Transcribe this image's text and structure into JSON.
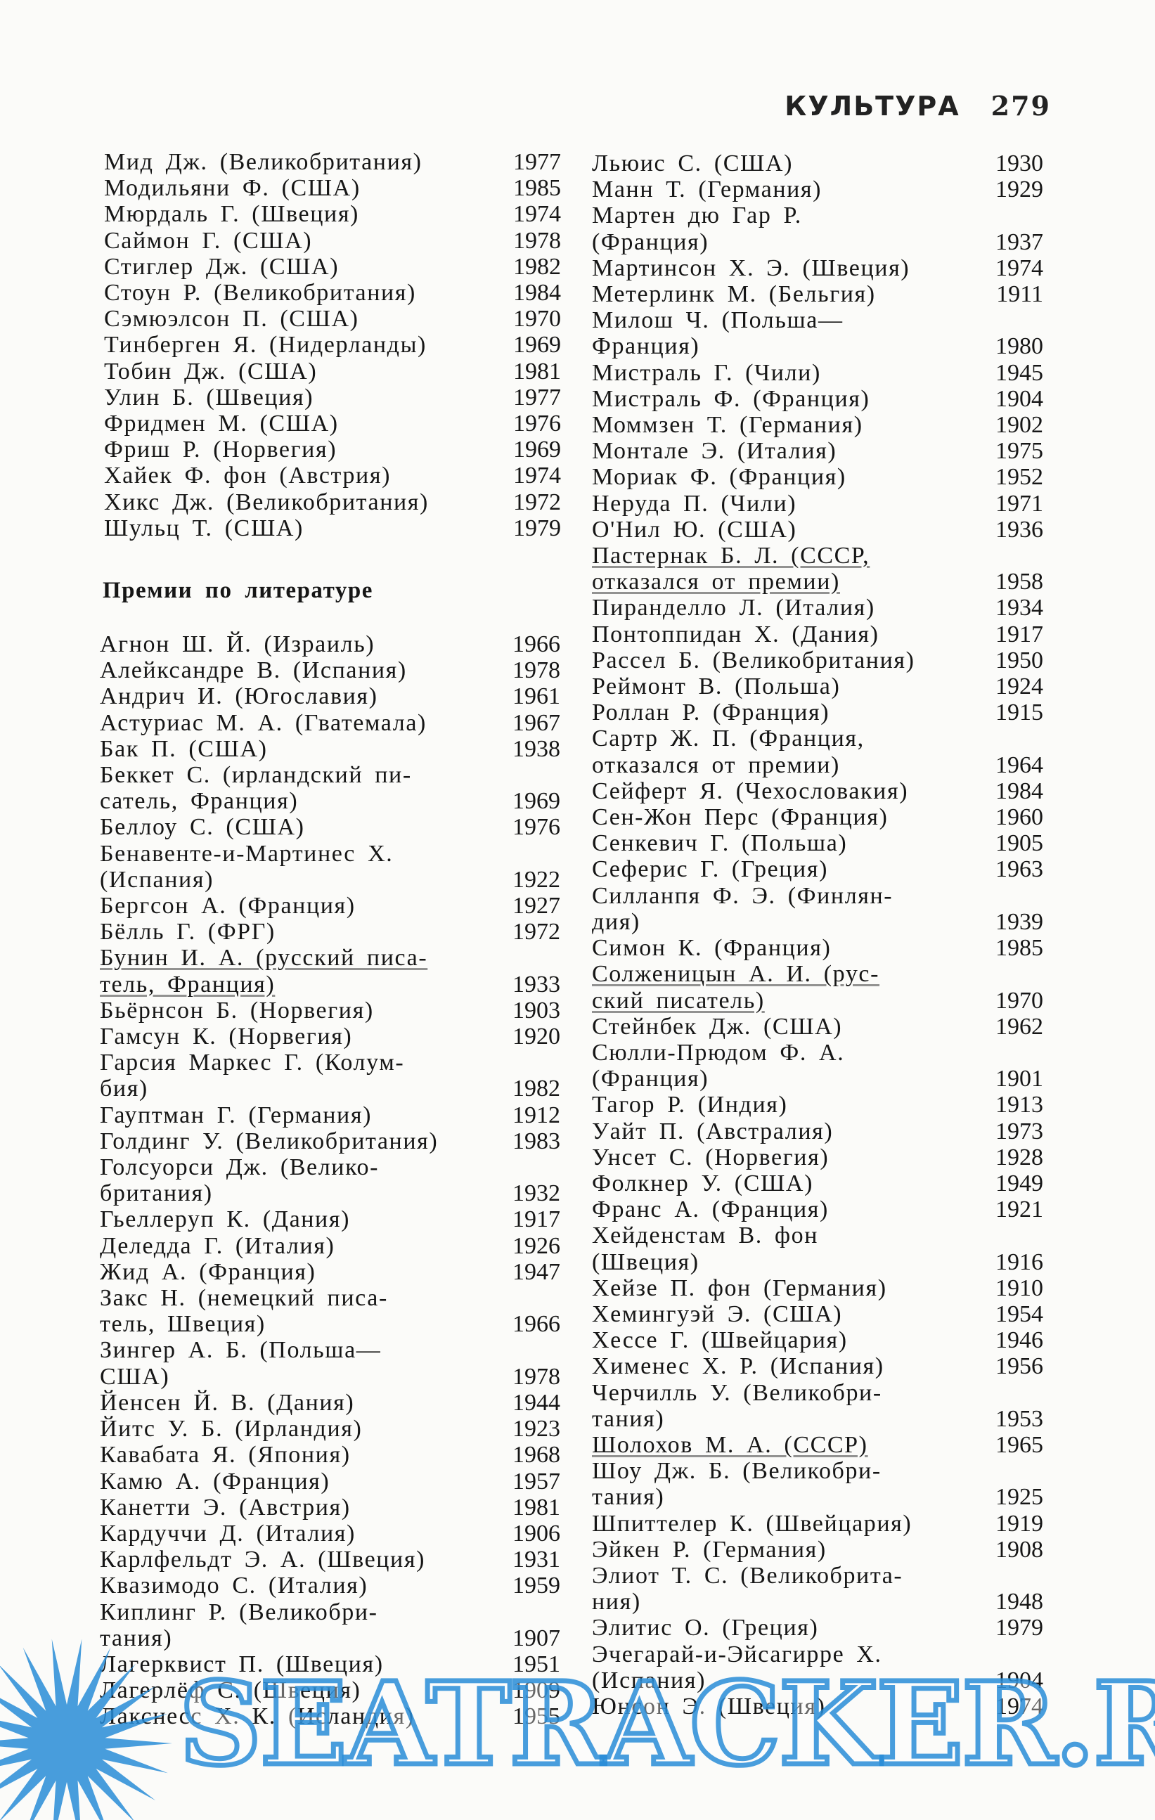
{
  "header": {
    "section": "КУЛЬТУРА",
    "page_number": "279"
  },
  "economics": [
    {
      "lines": [
        "Мид Дж. (Великобритания)"
      ],
      "year": "1977"
    },
    {
      "lines": [
        "Модильяни Ф. (США)"
      ],
      "year": "1985"
    },
    {
      "lines": [
        "Мюрдаль Г. (Швеция)"
      ],
      "year": "1974"
    },
    {
      "lines": [
        "Саймон Г. (США)"
      ],
      "year": "1978"
    },
    {
      "lines": [
        "Стиглер Дж. (США)"
      ],
      "year": "1982"
    },
    {
      "lines": [
        "Стоун Р. (Великобритания)"
      ],
      "year": "1984"
    },
    {
      "lines": [
        "Сэмюэлсон П. (США)"
      ],
      "year": "1970"
    },
    {
      "lines": [
        "Тинберген Я. (Нидерланды)"
      ],
      "year": "1969"
    },
    {
      "lines": [
        "Тобин Дж. (США)"
      ],
      "year": "1981"
    },
    {
      "lines": [
        "Улин Б. (Швеция)"
      ],
      "year": "1977"
    },
    {
      "lines": [
        "Фридмен М. (США)"
      ],
      "year": "1976"
    },
    {
      "lines": [
        "Фриш Р. (Норвегия)"
      ],
      "year": "1969"
    },
    {
      "lines": [
        "Хайек Ф. фон (Австрия)"
      ],
      "year": "1974"
    },
    {
      "lines": [
        "Хикс Дж. (Великобритания)"
      ],
      "year": "1972"
    },
    {
      "lines": [
        "Шульц Т. (США)"
      ],
      "year": "1979"
    }
  ],
  "literature_heading": "Премии по литературе",
  "literature_left": [
    {
      "lines": [
        "Агнон Ш. Й. (Израиль)"
      ],
      "year": "1966"
    },
    {
      "lines": [
        "Алейксандре В. (Испания)"
      ],
      "year": "1978"
    },
    {
      "lines": [
        "Андрич И. (Югославия)"
      ],
      "year": "1961"
    },
    {
      "lines": [
        "Астуриас М. А. (Гватемала)"
      ],
      "year": "1967"
    },
    {
      "lines": [
        "Бак П. (США)"
      ],
      "year": "1938"
    },
    {
      "lines": [
        "Беккет С. (ирландский пи-",
        "сатель, Франция)"
      ],
      "year": "1969"
    },
    {
      "lines": [
        "Беллоу С. (США)"
      ],
      "year": "1976"
    },
    {
      "lines": [
        "Бенавенте-и-Мартинес Х.",
        "(Испания)"
      ],
      "year": "1922"
    },
    {
      "lines": [
        "Бергсон А. (Франция)"
      ],
      "year": "1927"
    },
    {
      "lines": [
        "Бёлль Г. (ФРГ)"
      ],
      "year": "1972"
    },
    {
      "lines": [
        "Бунин И. А. (русский писа-",
        "тель, Франция)"
      ],
      "year": "1933",
      "marked": true
    },
    {
      "lines": [
        "Бьёрнсон Б. (Норвегия)"
      ],
      "year": "1903"
    },
    {
      "lines": [
        "Гамсун К. (Норвегия)"
      ],
      "year": "1920"
    },
    {
      "lines": [
        "Гарсия Маркес Г. (Колум-",
        "бия)"
      ],
      "year": "1982"
    },
    {
      "lines": [
        "Гауптман Г. (Германия)"
      ],
      "year": "1912"
    },
    {
      "lines": [
        "Голдинг У. (Великобритания)"
      ],
      "year": "1983"
    },
    {
      "lines": [
        "Голсуорси Дж. (Велико-",
        "британия)"
      ],
      "year": "1932"
    },
    {
      "lines": [
        "Гьеллеруп К. (Дания)"
      ],
      "year": "1917"
    },
    {
      "lines": [
        "Деледда Г. (Италия)"
      ],
      "year": "1926"
    },
    {
      "lines": [
        "Жид А. (Франция)"
      ],
      "year": "1947"
    },
    {
      "lines": [
        "Закс Н. (немецкий писа-",
        "тель, Швеция)"
      ],
      "year": "1966"
    },
    {
      "lines": [
        "Зингер А. Б. (Польша—",
        "США)"
      ],
      "year": "1978"
    },
    {
      "lines": [
        "Йенсен Й. В. (Дания)"
      ],
      "year": "1944"
    },
    {
      "lines": [
        "Йитс У. Б. (Ирландия)"
      ],
      "year": "1923"
    },
    {
      "lines": [
        "Кавабата Я. (Япония)"
      ],
      "year": "1968"
    },
    {
      "lines": [
        "Камю А. (Франция)"
      ],
      "year": "1957"
    },
    {
      "lines": [
        "Канетти Э. (Австрия)"
      ],
      "year": "1981"
    },
    {
      "lines": [
        "Кардуччи Д. (Италия)"
      ],
      "year": "1906"
    },
    {
      "lines": [
        "Карлфельдт Э. А. (Швеция)"
      ],
      "year": "1931"
    },
    {
      "lines": [
        "Квазимодо С. (Италия)"
      ],
      "year": "1959"
    },
    {
      "lines": [
        "Киплинг Р. (Великобри-",
        "тания)"
      ],
      "year": "1907"
    },
    {
      "lines": [
        "Лагерквист П. (Швеция)"
      ],
      "year": "1951"
    },
    {
      "lines": [
        "Лагерлёф С. (Швеция)"
      ],
      "year": "1909"
    },
    {
      "lines": [
        "Лакснесс Х. К. (Исландия)"
      ],
      "year": "1955"
    }
  ],
  "literature_right": [
    {
      "lines": [
        "Льюис С. (США)"
      ],
      "year": "1930"
    },
    {
      "lines": [
        "Манн Т. (Германия)"
      ],
      "year": "1929"
    },
    {
      "lines": [
        "Мартен дю Гар Р.",
        "(Франция)"
      ],
      "year": "1937"
    },
    {
      "lines": [
        "Мартинсон Х. Э. (Швеция)"
      ],
      "year": "1974"
    },
    {
      "lines": [
        "Метерлинк М. (Бельгия)"
      ],
      "year": "1911"
    },
    {
      "lines": [
        "Милош Ч. (Польша—",
        "Франция)"
      ],
      "year": "1980"
    },
    {
      "lines": [
        "Мистраль Г. (Чили)"
      ],
      "year": "1945"
    },
    {
      "lines": [
        "Мистраль Ф. (Франция)"
      ],
      "year": "1904"
    },
    {
      "lines": [
        "Моммзен Т. (Германия)"
      ],
      "year": "1902"
    },
    {
      "lines": [
        "Монтале Э. (Италия)"
      ],
      "year": "1975"
    },
    {
      "lines": [
        "Мориак Ф. (Франция)"
      ],
      "year": "1952"
    },
    {
      "lines": [
        "Неруда П. (Чили)"
      ],
      "year": "1971"
    },
    {
      "lines": [
        "О'Нил Ю. (США)"
      ],
      "year": "1936"
    },
    {
      "lines": [
        "Пастернак Б. Л. (СССР,",
        "отказался от премии)"
      ],
      "year": "1958",
      "marked": true
    },
    {
      "lines": [
        "Пиранделло Л. (Италия)"
      ],
      "year": "1934"
    },
    {
      "lines": [
        "Понтоппидан Х. (Дания)"
      ],
      "year": "1917"
    },
    {
      "lines": [
        "Рассел Б. (Великобритания)"
      ],
      "year": "1950"
    },
    {
      "lines": [
        "Реймонт В. (Польша)"
      ],
      "year": "1924"
    },
    {
      "lines": [
        "Роллан Р. (Франция)"
      ],
      "year": "1915"
    },
    {
      "lines": [
        "Сартр Ж. П. (Франция,",
        "отказался от премии)"
      ],
      "year": "1964"
    },
    {
      "lines": [
        "Сейферт Я. (Чехословакия)"
      ],
      "year": "1984"
    },
    {
      "lines": [
        "Сен-Жон Перс (Франция)"
      ],
      "year": "1960"
    },
    {
      "lines": [
        "Сенкевич Г. (Польша)"
      ],
      "year": "1905"
    },
    {
      "lines": [
        "Сеферис Г. (Греция)"
      ],
      "year": "1963"
    },
    {
      "lines": [
        "Силланпя Ф. Э. (Финлян-",
        "дия)"
      ],
      "year": "1939"
    },
    {
      "lines": [
        "Симон К. (Франция)"
      ],
      "year": "1985"
    },
    {
      "lines": [
        "Солженицын А. И. (рус-",
        "ский писатель)"
      ],
      "year": "1970",
      "marked": true
    },
    {
      "lines": [
        "Стейнбек Дж. (США)"
      ],
      "year": "1962"
    },
    {
      "lines": [
        "Сюлли-Прюдом Ф. А.",
        "(Франция)"
      ],
      "year": "1901"
    },
    {
      "lines": [
        "Тагор Р. (Индия)"
      ],
      "year": "1913"
    },
    {
      "lines": [
        "Уайт П. (Австралия)"
      ],
      "year": "1973"
    },
    {
      "lines": [
        "Унсет С. (Норвегия)"
      ],
      "year": "1928"
    },
    {
      "lines": [
        "Фолкнер У. (США)"
      ],
      "year": "1949"
    },
    {
      "lines": [
        "Франс А. (Франция)"
      ],
      "year": "1921"
    },
    {
      "lines": [
        "Хейденстам В. фон",
        "(Швеция)"
      ],
      "year": "1916"
    },
    {
      "lines": [
        "Хейзе П. фон (Германия)"
      ],
      "year": "1910"
    },
    {
      "lines": [
        "Хемингуэй Э. (США)"
      ],
      "year": "1954"
    },
    {
      "lines": [
        "Хессе Г. (Швейцария)"
      ],
      "year": "1946"
    },
    {
      "lines": [
        "Хименес Х. Р. (Испания)"
      ],
      "year": "1956"
    },
    {
      "lines": [
        "Черчилль У. (Великобри-",
        "тания)"
      ],
      "year": "1953"
    },
    {
      "lines": [
        "Шолохов М. А. (СССР)"
      ],
      "year": "1965",
      "marked": true
    },
    {
      "lines": [
        "Шоу Дж. Б. (Великобри-",
        "тания)"
      ],
      "year": "1925"
    },
    {
      "lines": [
        "Шпиттелер К. (Швейцария)"
      ],
      "year": "1919"
    },
    {
      "lines": [
        "Эйкен Р. (Германия)"
      ],
      "year": "1908"
    },
    {
      "lines": [
        "Элиот Т. С. (Великобрита-",
        "ния)"
      ],
      "year": "1948"
    },
    {
      "lines": [
        "Элитис О. (Греция)"
      ],
      "year": "1979"
    },
    {
      "lines": [
        "Эчегарай-и-Эйсагирре Х.",
        "(Испания)"
      ],
      "year": "1904"
    },
    {
      "lines": [
        "Юнсон Э. (Швеция)"
      ],
      "year": "1974"
    }
  ],
  "watermark": {
    "text": "SEATRACKER.RU",
    "color": "#288cd7"
  }
}
